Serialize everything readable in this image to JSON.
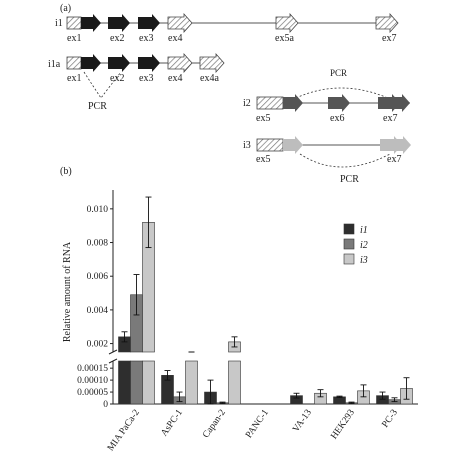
{
  "panel_a": {
    "label": "(a)",
    "transcripts": [
      {
        "name": "i1",
        "exons": [
          "ex1",
          "ex2",
          "ex3",
          "ex4",
          "ex5a",
          "ex7"
        ]
      },
      {
        "name": "i1a",
        "exons": [
          "ex1",
          "ex2",
          "ex3",
          "ex4",
          "ex4a"
        ],
        "pcr": "PCR"
      },
      {
        "name": "i2",
        "exons": [
          "ex5",
          "ex6",
          "ex7"
        ],
        "pcr": "PCR"
      },
      {
        "name": "i3",
        "exons": [
          "ex5",
          "ex7"
        ],
        "pcr": "PCR"
      }
    ]
  },
  "panel_b": {
    "label": "(b)"
  },
  "colors": {
    "i1": "#2e2e2e",
    "i2": "#7a7a7a",
    "i3": "#c8c8c8",
    "exon_black": "#1a1a1a",
    "exon_dark": "#555555",
    "exon_light": "#bdbdbd",
    "axis": "#222222"
  },
  "chart_data": {
    "type": "bar",
    "ylabel": "Relative amount of RNA",
    "categories": [
      "MIA PaCa-2",
      "AsPC-1",
      "Capan-2",
      "PANC-1",
      "VA-13",
      "HEK293",
      "PC-3"
    ],
    "series": [
      {
        "name": "i1",
        "values": [
          0.0024,
          0.00012,
          5e-05,
          0,
          3.5e-05,
          3e-05,
          3.5e-05
        ],
        "errors": [
          0.0003,
          2e-05,
          5e-05,
          0,
          1e-05,
          3e-06,
          1.5e-05
        ]
      },
      {
        "name": "i2",
        "values": [
          0.0049,
          3e-05,
          5e-06,
          0,
          0,
          5e-06,
          1.8e-05
        ],
        "errors": [
          0.0012,
          2e-05,
          3e-06,
          0,
          0,
          3e-06,
          8e-06
        ]
      },
      {
        "name": "i3",
        "values": [
          0.0092,
          0.00065,
          0.0021,
          0,
          4.5e-05,
          5.5e-05,
          6.5e-05
        ],
        "errors": [
          0.0015,
          5e-05,
          0.0003,
          0,
          1.5e-05,
          2.5e-05,
          4.5e-05
        ]
      }
    ],
    "y_axis_upper": {
      "range": [
        0.0015,
        0.011
      ],
      "ticks": [
        "0.002",
        "0.004",
        "0.006",
        "0.008",
        "0.010"
      ]
    },
    "y_axis_lower": {
      "range": [
        0,
        0.00018
      ],
      "ticks": [
        "0",
        "0.00005",
        "0.00010",
        "0.00015"
      ]
    },
    "scale": "broken axis",
    "legend": {
      "entries": [
        "i1",
        "i2",
        "i3"
      ],
      "position": "top-right"
    },
    "grid": false
  }
}
